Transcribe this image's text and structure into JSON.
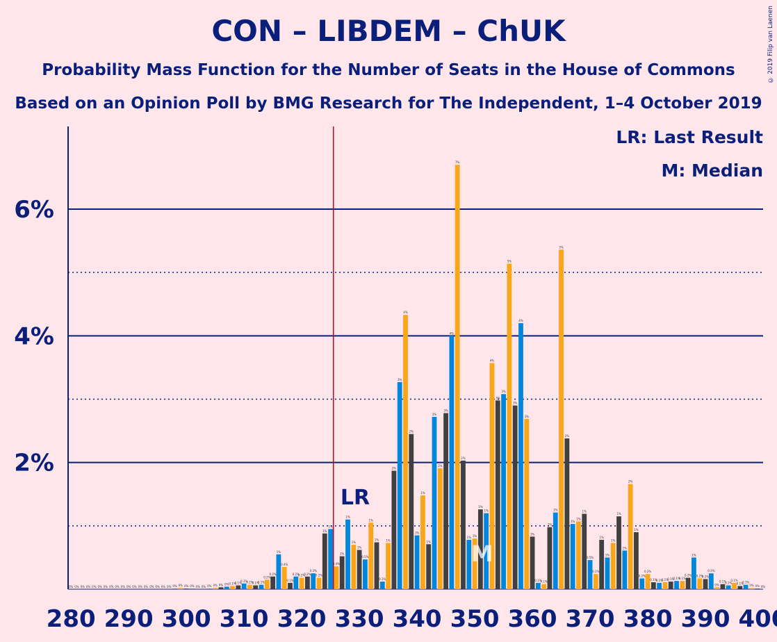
{
  "title": "CON – LIBDEM – ChUK",
  "subtitle1": "Probability Mass Function for the Number of Seats in the House of Commons",
  "subtitle2": "Based on an Opinion Poll by BMG Research for The Independent, 1–4 October 2019",
  "legend": {
    "lr": "LR: Last Result",
    "m": "M: Median"
  },
  "copyright": "© 2019 Filip van Laenen",
  "colors": {
    "background": "#FFE6EA",
    "text": "#0A1F7A",
    "series": [
      "#0087DC",
      "#FAA61A",
      "#404040"
    ],
    "last_result_line": "#D0021B"
  },
  "chart_data": {
    "type": "bar",
    "xlim": [
      280,
      400
    ],
    "ylim": [
      0,
      7
    ],
    "xticks": [
      "280",
      "290",
      "300",
      "310",
      "320",
      "330",
      "340",
      "350",
      "360",
      "370",
      "380",
      "390",
      "400"
    ],
    "yticks": [
      "2%",
      "4%",
      "6%"
    ],
    "gridlines_solid": [
      2,
      4,
      6
    ],
    "gridlines_dotted": [
      1,
      3,
      5
    ],
    "last_result": {
      "x": 326,
      "label": "LR"
    },
    "median": {
      "x": 352,
      "label": "M"
    },
    "bars": [
      {
        "x": 280,
        "value": 0
      },
      {
        "x": 281,
        "value": 0
      },
      {
        "x": 282,
        "value": 0
      },
      {
        "x": 283,
        "value": 0
      },
      {
        "x": 284,
        "value": 0
      },
      {
        "x": 285,
        "value": 0
      },
      {
        "x": 286,
        "value": 0
      },
      {
        "x": 287,
        "value": 0
      },
      {
        "x": 288,
        "value": 0
      },
      {
        "x": 289,
        "value": 0
      },
      {
        "x": 290,
        "value": 0
      },
      {
        "x": 291,
        "value": 0
      },
      {
        "x": 292,
        "value": 0
      },
      {
        "x": 293,
        "value": 0
      },
      {
        "x": 294,
        "value": 0
      },
      {
        "x": 295,
        "value": 0
      },
      {
        "x": 296,
        "value": 0
      },
      {
        "x": 297,
        "value": 0
      },
      {
        "x": 298,
        "value": 0.01
      },
      {
        "x": 299,
        "value": 0.02
      },
      {
        "x": 300,
        "value": 0.01
      },
      {
        "x": 301,
        "value": 0.01
      },
      {
        "x": 302,
        "value": 0
      },
      {
        "x": 303,
        "value": 0
      },
      {
        "x": 304,
        "value": 0.01
      },
      {
        "x": 305,
        "value": 0.02
      },
      {
        "x": 306,
        "value": 0.03
      },
      {
        "x": 307,
        "value": 0.04
      },
      {
        "x": 308,
        "value": 0.05
      },
      {
        "x": 309,
        "value": 0.06
      },
      {
        "x": 310,
        "value": 0.09
      },
      {
        "x": 311,
        "value": 0.07
      },
      {
        "x": 312,
        "value": 0.06
      },
      {
        "x": 313,
        "value": 0.07
      },
      {
        "x": 314,
        "value": 0.15
      },
      {
        "x": 315,
        "value": 0.2
      },
      {
        "x": 316,
        "value": 0.55
      },
      {
        "x": 317,
        "value": 0.35
      },
      {
        "x": 318,
        "value": 0.1
      },
      {
        "x": 319,
        "value": 0.2
      },
      {
        "x": 320,
        "value": 0.18
      },
      {
        "x": 321,
        "value": 0.2
      },
      {
        "x": 322,
        "value": 0.25
      },
      {
        "x": 323,
        "value": 0.18
      },
      {
        "x": 324,
        "value": 0.88
      },
      {
        "x": 325,
        "value": 0.95
      },
      {
        "x": 326,
        "value": 0.36
      },
      {
        "x": 327,
        "value": 0.52
      },
      {
        "x": 328,
        "value": 1.1
      },
      {
        "x": 329,
        "value": 0.7
      },
      {
        "x": 330,
        "value": 0.62
      },
      {
        "x": 331,
        "value": 0.47
      },
      {
        "x": 332,
        "value": 1.05
      },
      {
        "x": 333,
        "value": 0.74
      },
      {
        "x": 334,
        "value": 0.12
      },
      {
        "x": 335,
        "value": 0.73
      },
      {
        "x": 336,
        "value": 1.87
      },
      {
        "x": 337,
        "value": 3.27
      },
      {
        "x": 338,
        "value": 4.33
      },
      {
        "x": 339,
        "value": 2.45
      },
      {
        "x": 340,
        "value": 0.85
      },
      {
        "x": 341,
        "value": 1.48
      },
      {
        "x": 342,
        "value": 0.71
      },
      {
        "x": 343,
        "value": 2.72
      },
      {
        "x": 344,
        "value": 1.91
      },
      {
        "x": 345,
        "value": 2.78
      },
      {
        "x": 346,
        "value": 4.0
      },
      {
        "x": 347,
        "value": 6.7
      },
      {
        "x": 348,
        "value": 2.03
      },
      {
        "x": 349,
        "value": 0.78
      },
      {
        "x": 350,
        "value": 0.8
      },
      {
        "x": 351,
        "value": 1.26
      },
      {
        "x": 352,
        "value": 1.2
      },
      {
        "x": 353,
        "value": 3.57
      },
      {
        "x": 354,
        "value": 2.98
      },
      {
        "x": 355,
        "value": 3.08
      },
      {
        "x": 356,
        "value": 5.14
      },
      {
        "x": 357,
        "value": 2.9
      },
      {
        "x": 358,
        "value": 4.2
      },
      {
        "x": 359,
        "value": 2.69
      },
      {
        "x": 360,
        "value": 0.83
      },
      {
        "x": 361,
        "value": 0.1
      },
      {
        "x": 362,
        "value": 0.08
      },
      {
        "x": 363,
        "value": 0.98
      },
      {
        "x": 364,
        "value": 1.21
      },
      {
        "x": 365,
        "value": 5.36
      },
      {
        "x": 366,
        "value": 2.38
      },
      {
        "x": 367,
        "value": 1.03
      },
      {
        "x": 368,
        "value": 1.07
      },
      {
        "x": 369,
        "value": 1.19
      },
      {
        "x": 370,
        "value": 0.46
      },
      {
        "x": 371,
        "value": 0.24
      },
      {
        "x": 372,
        "value": 0.78
      },
      {
        "x": 373,
        "value": 0.5
      },
      {
        "x": 374,
        "value": 0.73
      },
      {
        "x": 375,
        "value": 1.15
      },
      {
        "x": 376,
        "value": 0.61
      },
      {
        "x": 377,
        "value": 1.66
      },
      {
        "x": 378,
        "value": 0.9
      },
      {
        "x": 379,
        "value": 0.17
      },
      {
        "x": 380,
        "value": 0.24
      },
      {
        "x": 381,
        "value": 0.11
      },
      {
        "x": 382,
        "value": 0.1
      },
      {
        "x": 383,
        "value": 0.11
      },
      {
        "x": 384,
        "value": 0.12
      },
      {
        "x": 385,
        "value": 0.13
      },
      {
        "x": 386,
        "value": 0.13
      },
      {
        "x": 387,
        "value": 0.18
      },
      {
        "x": 388,
        "value": 0.5
      },
      {
        "x": 389,
        "value": 0.17
      },
      {
        "x": 390,
        "value": 0.16
      },
      {
        "x": 391,
        "value": 0.25
      },
      {
        "x": 392,
        "value": 0.03
      },
      {
        "x": 393,
        "value": 0.08
      },
      {
        "x": 394,
        "value": 0.06
      },
      {
        "x": 395,
        "value": 0.1
      },
      {
        "x": 396,
        "value": 0.05
      },
      {
        "x": 397,
        "value": 0.07
      },
      {
        "x": 398,
        "value": 0.02
      },
      {
        "x": 399,
        "value": 0.01
      },
      {
        "x": 400,
        "value": 0
      }
    ]
  }
}
